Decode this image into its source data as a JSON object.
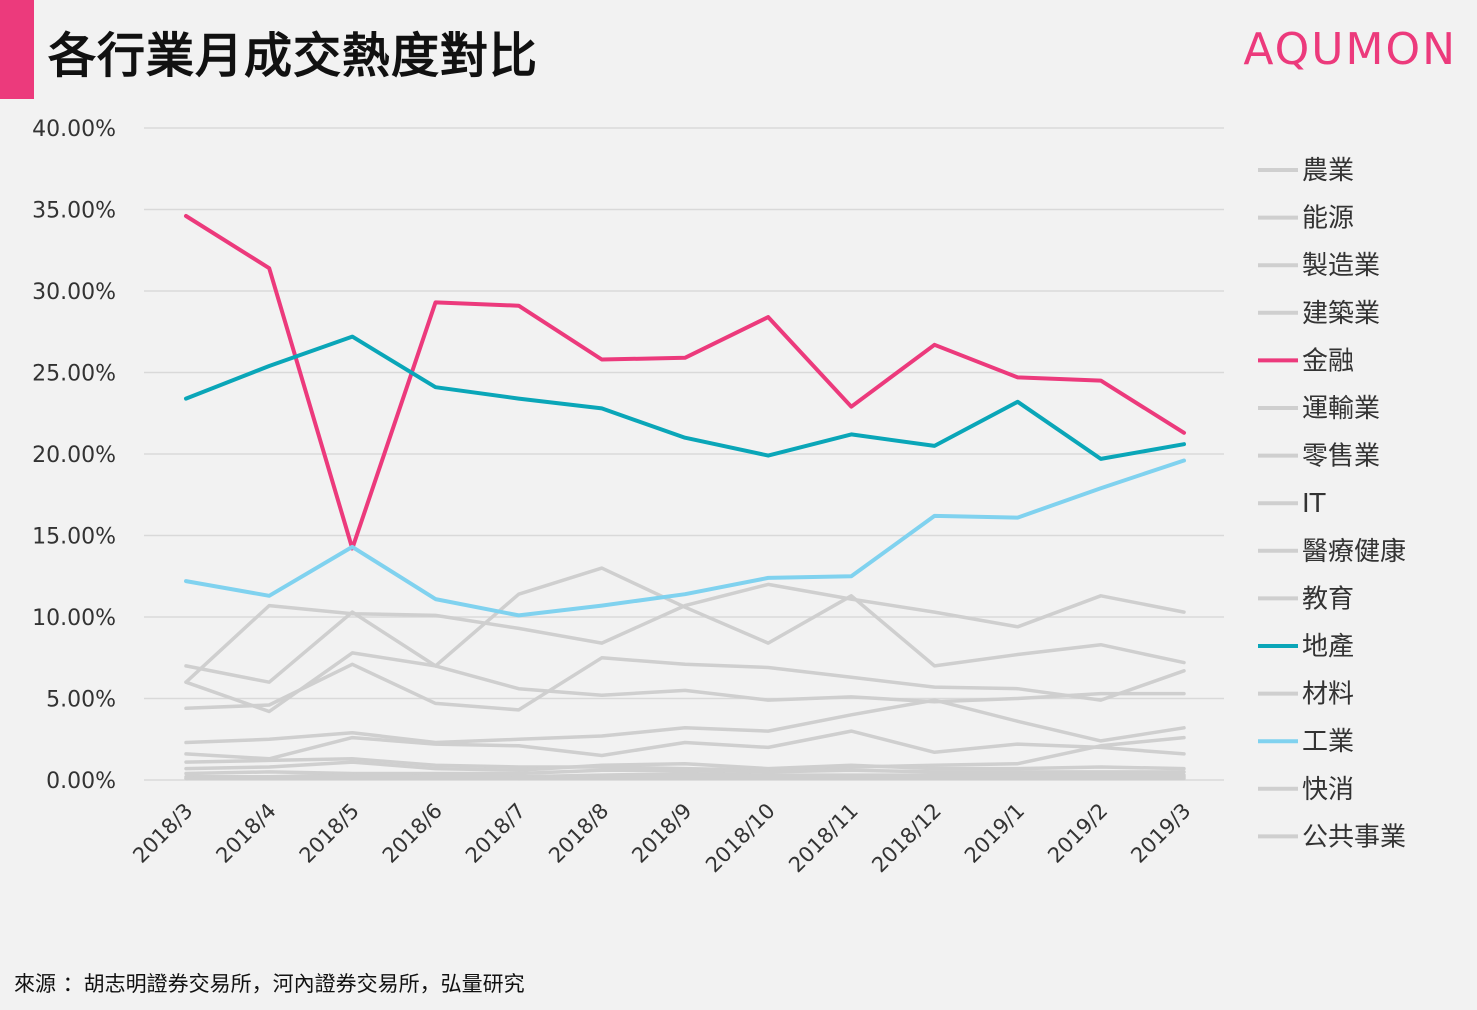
{
  "header": {
    "title": "各行業月成交熱度對比",
    "brand": "AQUMON"
  },
  "footer": {
    "source": "來源 ：胡志明證券交易所，河內證券交易所，弘量研究"
  },
  "colors": {
    "accent": "#ec3a7c",
    "finance": "#ec3a7c",
    "realestate": "#0aa6b8",
    "industry": "#80d2ef",
    "other": "#cfcfcf",
    "grid": "#d9d9d9"
  },
  "chart_data": {
    "type": "line",
    "x": [
      "2018/3",
      "2018/4",
      "2018/5",
      "2018/6",
      "2018/7",
      "2018/8",
      "2018/9",
      "2018/10",
      "2018/11",
      "2018/12",
      "2019/1",
      "2019/2",
      "2019/3"
    ],
    "ylim": [
      0,
      40
    ],
    "yticks": [
      "0.00%",
      "5.00%",
      "10.00%",
      "15.00%",
      "20.00%",
      "25.00%",
      "30.00%",
      "35.00%",
      "40.00%"
    ],
    "grid": "horizontal",
    "legend_position": "right",
    "series": [
      {
        "name": "農業",
        "color": "#cfcfcf",
        "values": [
          7.0,
          6.0,
          10.3,
          7.0,
          11.4,
          13.0,
          10.6,
          8.4,
          11.3,
          7.0,
          7.7,
          8.3,
          7.2
        ]
      },
      {
        "name": "能源",
        "color": "#cfcfcf",
        "values": [
          6.0,
          10.7,
          10.2,
          10.1,
          9.3,
          8.4,
          10.7,
          12.0,
          11.1,
          10.3,
          9.4,
          11.3,
          10.3
        ]
      },
      {
        "name": "製造業",
        "color": "#cfcfcf",
        "values": [
          6.0,
          4.2,
          7.8,
          7.0,
          5.6,
          5.2,
          5.5,
          4.9,
          5.1,
          4.8,
          5.0,
          5.3,
          5.3
        ]
      },
      {
        "name": "建築業",
        "color": "#cfcfcf",
        "values": [
          4.4,
          4.6,
          7.1,
          4.7,
          4.3,
          7.5,
          7.1,
          6.9,
          6.3,
          5.7,
          5.6,
          4.9,
          6.7
        ]
      },
      {
        "name": "金融",
        "color": "#ec3a7c",
        "values": [
          34.6,
          31.4,
          14.2,
          29.3,
          29.1,
          25.8,
          25.9,
          28.4,
          22.9,
          26.7,
          24.7,
          24.5,
          21.3
        ]
      },
      {
        "name": "運輸業",
        "color": "#cfcfcf",
        "values": [
          2.3,
          2.5,
          2.9,
          2.3,
          2.5,
          2.7,
          3.2,
          3.0,
          4.0,
          4.9,
          3.6,
          2.4,
          3.2
        ]
      },
      {
        "name": "零售業",
        "color": "#cfcfcf",
        "values": [
          1.6,
          1.3,
          2.6,
          2.2,
          2.1,
          1.5,
          2.3,
          2.0,
          3.0,
          1.7,
          2.2,
          2.0,
          1.6
        ]
      },
      {
        "name": "IT",
        "color": "#cfcfcf",
        "values": [
          1.1,
          1.2,
          1.3,
          0.9,
          0.8,
          0.8,
          0.7,
          0.6,
          0.8,
          0.9,
          1.0,
          2.1,
          2.6
        ]
      },
      {
        "name": "醫療健康",
        "color": "#cfcfcf",
        "values": [
          0.7,
          0.8,
          1.1,
          0.7,
          0.6,
          0.9,
          1.0,
          0.7,
          0.9,
          0.7,
          0.7,
          0.8,
          0.7
        ]
      },
      {
        "name": "教育",
        "color": "#cfcfcf",
        "values": [
          0.2,
          0.2,
          0.2,
          0.2,
          0.2,
          0.3,
          0.4,
          0.3,
          0.3,
          0.3,
          0.3,
          0.3,
          0.3
        ]
      },
      {
        "name": "地產",
        "color": "#0aa6b8",
        "values": [
          23.4,
          25.4,
          27.2,
          24.1,
          23.4,
          22.8,
          21.0,
          19.9,
          21.2,
          20.5,
          23.2,
          19.7,
          20.6
        ]
      },
      {
        "name": "材料",
        "color": "#cfcfcf",
        "values": [
          0.4,
          0.5,
          0.4,
          0.4,
          0.4,
          0.6,
          0.6,
          0.5,
          0.6,
          0.5,
          0.5,
          0.5,
          0.5
        ]
      },
      {
        "name": "工業",
        "color": "#80d2ef",
        "values": [
          12.2,
          11.3,
          14.3,
          11.1,
          10.1,
          10.7,
          11.4,
          12.4,
          12.5,
          16.2,
          16.1,
          17.9,
          19.6
        ]
      },
      {
        "name": "快消",
        "color": "#cfcfcf",
        "values": [
          0.1,
          0.2,
          0.3,
          0.2,
          0.1,
          0.2,
          0.2,
          0.2,
          0.2,
          0.2,
          0.2,
          0.2,
          0.2
        ]
      },
      {
        "name": "公共事業",
        "color": "#cfcfcf",
        "values": [
          0.1,
          0.1,
          0.1,
          0.1,
          0.1,
          0.1,
          0.1,
          0.1,
          0.1,
          0.1,
          0.1,
          0.1,
          0.1
        ]
      }
    ]
  }
}
